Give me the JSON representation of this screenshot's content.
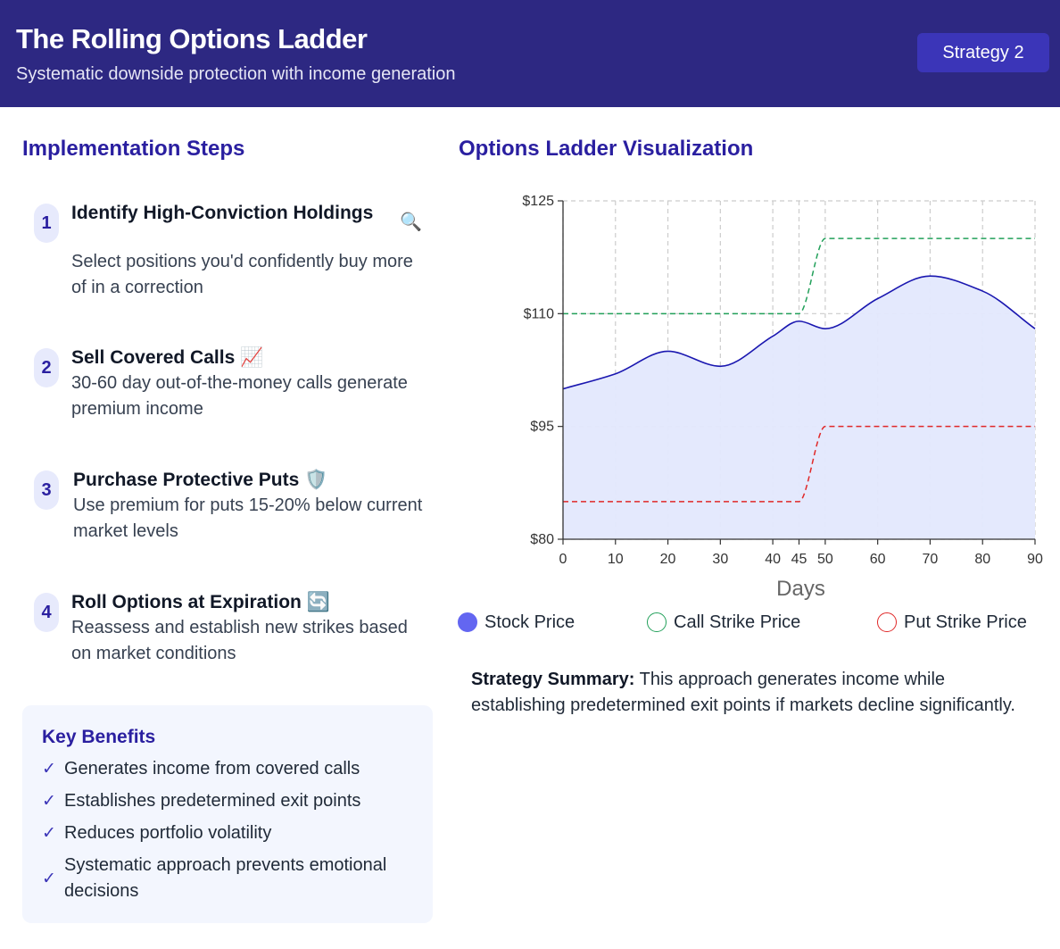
{
  "header": {
    "title": "The Rolling Options Ladder",
    "subtitle": "Systematic downside protection with income generation",
    "badge": "Strategy 2"
  },
  "steps_section": {
    "title": "Implementation Steps"
  },
  "steps": [
    {
      "number": "1",
      "title": "Identify High-Conviction Holdings",
      "description": "Select positions you'd confidently buy more of in a correction",
      "icon": "🔍",
      "icon_name": "magnifier-icon"
    },
    {
      "number": "2",
      "title": "Sell Covered Calls",
      "description": "30-60 day out-of-the-money calls generate premium income",
      "icon": "📈",
      "icon_name": "chart-up-icon"
    },
    {
      "number": "3",
      "title": "Purchase Protective Puts",
      "description": "Use premium for puts 15-20% below current market levels",
      "icon": "🛡️",
      "icon_name": "shield-icon"
    },
    {
      "number": "4",
      "title": "Roll Options at Expiration",
      "description": "Reassess and establish new strikes based on market conditions",
      "icon": "🔄",
      "icon_name": "repeat-icon"
    }
  ],
  "benefits": {
    "title": "Key Benefits",
    "items": [
      "Generates income from covered calls",
      "Establishes predetermined exit points",
      "Reduces portfolio volatility",
      "Systematic approach prevents emotional decisions"
    ],
    "check_glyph": "✓"
  },
  "chart_section": {
    "title": "Options Ladder Visualization"
  },
  "chart_data": {
    "type": "line",
    "title": "Options Ladder Visualization",
    "xlabel": "Days",
    "ylabel": "",
    "x": [
      0,
      10,
      20,
      30,
      40,
      45,
      50,
      60,
      70,
      80,
      90
    ],
    "x_tick_labels": [
      "0",
      "10",
      "20",
      "30",
      "40",
      "45",
      "50",
      "60",
      "70",
      "80",
      "90"
    ],
    "xlim": [
      0,
      90
    ],
    "ylim": [
      80,
      125
    ],
    "y_ticks": [
      80,
      95,
      110,
      125
    ],
    "y_tick_labels": [
      "$80",
      "$95",
      "$110",
      "$125"
    ],
    "grid": true,
    "legend_position": "bottom",
    "series": [
      {
        "name": "Stock Price",
        "values": [
          100,
          102,
          105,
          103,
          107,
          109,
          108,
          112,
          115,
          113,
          108
        ],
        "color": "#1a17b0",
        "fill": "#e3e8fd",
        "style": "solid-area"
      },
      {
        "name": "Call Strike Price",
        "values": [
          110,
          110,
          110,
          110,
          110,
          110,
          120,
          120,
          120,
          120,
          120
        ],
        "color": "#22a05a",
        "style": "dashed"
      },
      {
        "name": "Put Strike Price",
        "values": [
          85,
          85,
          85,
          85,
          85,
          85,
          95,
          95,
          95,
          95,
          95
        ],
        "color": "#e02828",
        "style": "dashed"
      }
    ]
  },
  "legend": [
    {
      "label": "Stock Price",
      "color": "#6366f1",
      "filled": true
    },
    {
      "label": "Call Strike Price",
      "color": "#22a05a",
      "filled": false
    },
    {
      "label": "Put Strike Price",
      "color": "#e02828",
      "filled": false
    }
  ],
  "summary": {
    "label": "Strategy Summary:",
    "text": " This approach generates income while establishing predetermined exit points if markets decline significantly."
  }
}
